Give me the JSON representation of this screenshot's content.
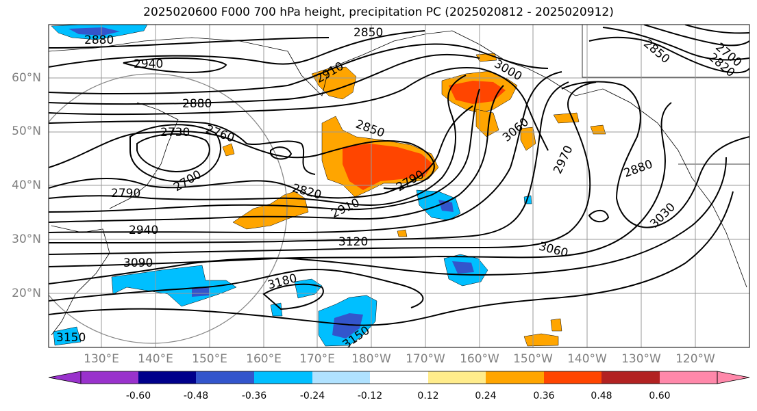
{
  "title": "2025020600 F000 700 hPa height, precipitation PC (2025020812 - 2025020912)",
  "lat_labels": [
    "60°N",
    "50°N",
    "40°N",
    "30°N",
    "20°N"
  ],
  "lon_labels": [
    "130°E",
    "140°E",
    "150°E",
    "160°E",
    "170°E",
    "180°W",
    "170°W",
    "160°W",
    "150°W",
    "140°W",
    "130°W",
    "120°W"
  ],
  "contour_labels": [
    "2880",
    "2850",
    "2940",
    "2910",
    "3000",
    "2850",
    "2880",
    "2730",
    "2760",
    "2850",
    "3060",
    "2970",
    "2700",
    "2790",
    "2880",
    "2820",
    "2790",
    "2910",
    "3030",
    "2940",
    "3120",
    "3060",
    "3090",
    "3180",
    "3150",
    "3150",
    "2820",
    "2700"
  ],
  "colorbar": {
    "ticks": [
      "-0.60",
      "-0.48",
      "-0.36",
      "-0.24",
      "-0.12",
      "0.12",
      "0.24",
      "0.36",
      "0.48",
      "0.60"
    ],
    "colors": [
      "#9932cc",
      "#00008b",
      "#3355cc",
      "#00bfff",
      "#b0e2ff",
      "#ffffff",
      "#ffec8b",
      "#ffa500",
      "#ff4500",
      "#b22222",
      "#ff88aa"
    ]
  }
}
